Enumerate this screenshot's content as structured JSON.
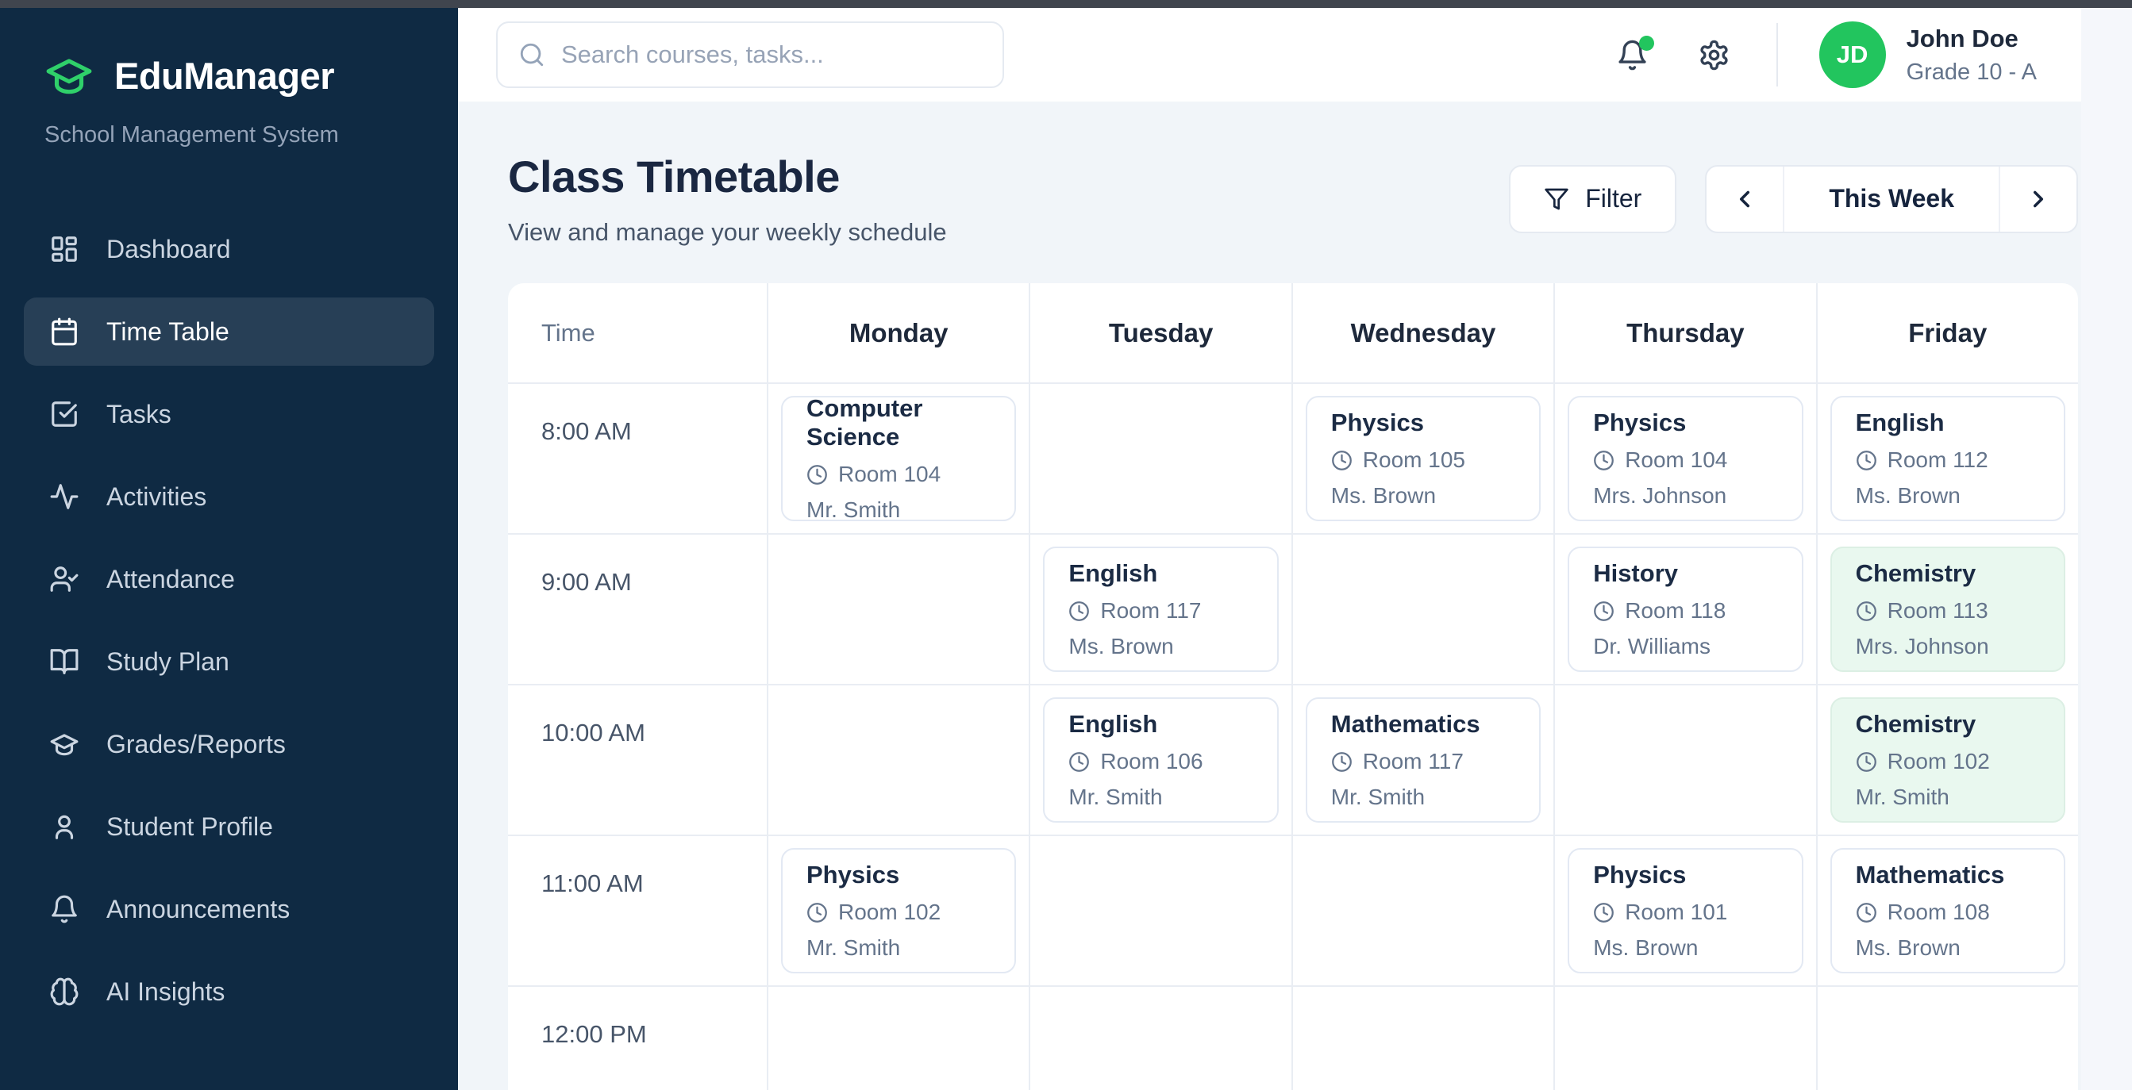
{
  "colors": {
    "accent_green": "#22c55e",
    "logo_green": "#2fd06a",
    "sidebar_bg": "#0f2a43",
    "highlight_card_bg": "#e9f8ef",
    "page_bg": "#f1f5f9"
  },
  "sidebar": {
    "logo_title": "EduManager",
    "logo_subtitle": "School Management System",
    "items": [
      {
        "label": "Dashboard",
        "icon": "dashboard-icon",
        "active": false
      },
      {
        "label": "Time Table",
        "icon": "calendar-icon",
        "active": true
      },
      {
        "label": "Tasks",
        "icon": "check-square-icon",
        "active": false
      },
      {
        "label": "Activities",
        "icon": "activity-icon",
        "active": false
      },
      {
        "label": "Attendance",
        "icon": "user-check-icon",
        "active": false
      },
      {
        "label": "Study Plan",
        "icon": "book-open-icon",
        "active": false
      },
      {
        "label": "Grades/Reports",
        "icon": "graduation-cap-icon",
        "active": false
      },
      {
        "label": "Student Profile",
        "icon": "user-icon",
        "active": false
      },
      {
        "label": "Announcements",
        "icon": "bell-icon",
        "active": false
      },
      {
        "label": "AI Insights",
        "icon": "brain-icon",
        "active": false
      }
    ]
  },
  "topbar": {
    "search_placeholder": "Search courses, tasks...",
    "has_notification": true,
    "user": {
      "initials": "JD",
      "name": "John Doe",
      "grade": "Grade 10 - A"
    }
  },
  "page": {
    "title": "Class Timetable",
    "subtitle": "View and manage your weekly schedule",
    "filter_label": "Filter",
    "week_label": "This Week"
  },
  "timetable": {
    "time_header": "Time",
    "days": [
      "Monday",
      "Tuesday",
      "Wednesday",
      "Thursday",
      "Friday"
    ],
    "rows": [
      {
        "time": "8:00 AM",
        "cells": [
          {
            "subject": "Computer Science",
            "room": "Room 104",
            "teacher": "Mr. Smith",
            "highlight": false
          },
          null,
          {
            "subject": "Physics",
            "room": "Room 105",
            "teacher": "Ms. Brown",
            "highlight": false
          },
          {
            "subject": "Physics",
            "room": "Room 104",
            "teacher": "Mrs. Johnson",
            "highlight": false
          },
          {
            "subject": "English",
            "room": "Room 112",
            "teacher": "Ms. Brown",
            "highlight": false
          }
        ]
      },
      {
        "time": "9:00 AM",
        "cells": [
          null,
          {
            "subject": "English",
            "room": "Room 117",
            "teacher": "Ms. Brown",
            "highlight": false
          },
          null,
          {
            "subject": "History",
            "room": "Room 118",
            "teacher": "Dr. Williams",
            "highlight": false
          },
          {
            "subject": "Chemistry",
            "room": "Room 113",
            "teacher": "Mrs. Johnson",
            "highlight": true
          }
        ]
      },
      {
        "time": "10:00 AM",
        "cells": [
          null,
          {
            "subject": "English",
            "room": "Room 106",
            "teacher": "Mr. Smith",
            "highlight": false
          },
          {
            "subject": "Mathematics",
            "room": "Room 117",
            "teacher": "Mr. Smith",
            "highlight": false
          },
          null,
          {
            "subject": "Chemistry",
            "room": "Room 102",
            "teacher": "Mr. Smith",
            "highlight": true
          }
        ]
      },
      {
        "time": "11:00 AM",
        "cells": [
          {
            "subject": "Physics",
            "room": "Room 102",
            "teacher": "Mr. Smith",
            "highlight": false
          },
          null,
          null,
          {
            "subject": "Physics",
            "room": "Room 101",
            "teacher": "Ms. Brown",
            "highlight": false
          },
          {
            "subject": "Mathematics",
            "room": "Room 108",
            "teacher": "Ms. Brown",
            "highlight": false
          }
        ]
      },
      {
        "time": "12:00 PM",
        "cells": [
          null,
          null,
          null,
          null,
          null
        ]
      }
    ]
  }
}
